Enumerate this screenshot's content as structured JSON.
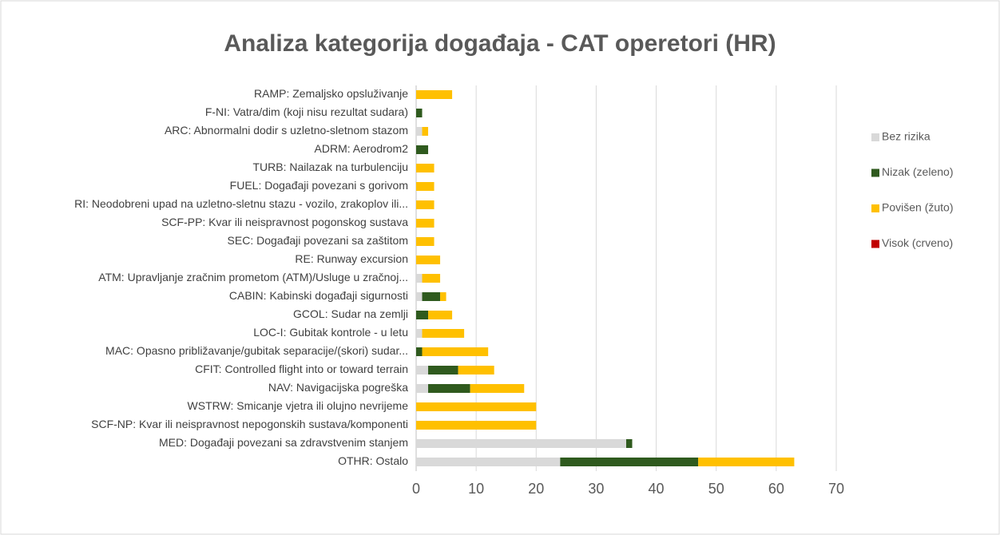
{
  "chart_data": {
    "type": "stacked_barh",
    "title": "Analiza kategorija događaja - CAT operetori (HR)",
    "categories": [
      "RAMP: Zemaljsko opsluživanje",
      "F-NI: Vatra/dim (koji nisu rezultat sudara)",
      "ARC: Abnormalni dodir s uzletno-sletnom stazom",
      "ADRM: Aerodrom2",
      "TURB: Nailazak na turbulenciju",
      "FUEL: Događaji povezani s gorivom",
      "RI: Neodobreni upad na uzletno-sletnu stazu - vozilo, zrakoplov ili...",
      "SCF-PP: Kvar ili neispravnost pogonskog sustava",
      "SEC: Događaji povezani sa zaštitom",
      "RE: Runway excursion",
      "ATM: Upravljanje zračnim prometom (ATM)/Usluge u zračnoj...",
      "CABIN: Kabinski događaji sigurnosti",
      "GCOL: Sudar na zemlji",
      "LOC-I: Gubitak kontrole - u letu",
      "MAC: Opasno približavanje/gubitak separacije/(skori) sudar...",
      "CFIT: Controlled flight into or toward terrain",
      "NAV: Navigacijska pogreška",
      "WSTRW: Smicanje vjetra ili olujno nevrijeme",
      "SCF-NP: Kvar ili neispravnost nepogonskih sustava/komponenti",
      "MED: Događaji povezani sa zdravstvenim stanjem",
      "OTHR: Ostalo"
    ],
    "series": [
      {
        "name": "Bez rizika",
        "color": "#d9d9d9",
        "values": [
          0,
          0,
          1,
          0,
          0,
          0,
          0,
          0,
          0,
          0,
          1,
          1,
          0,
          1,
          0,
          2,
          2,
          0,
          0,
          35,
          24
        ]
      },
      {
        "name": "Nizak (zeleno)",
        "color": "#2f5a1e",
        "values": [
          0,
          1,
          0,
          2,
          0,
          0,
          0,
          0,
          0,
          0,
          0,
          3,
          2,
          0,
          1,
          5,
          7,
          0,
          0,
          1,
          23
        ]
      },
      {
        "name": "Povišen (žuto)",
        "color": "#ffc000",
        "values": [
          6,
          0,
          1,
          0,
          3,
          3,
          3,
          3,
          3,
          4,
          3,
          1,
          4,
          7,
          11,
          6,
          9,
          20,
          20,
          0,
          16
        ]
      },
      {
        "name": "Visok (crveno)",
        "color": "#c00000",
        "values": [
          0,
          0,
          0,
          0,
          0,
          0,
          0,
          0,
          0,
          0,
          0,
          0,
          0,
          0,
          0,
          0,
          0,
          0,
          0,
          0,
          0
        ]
      }
    ],
    "xlim": [
      0,
      70
    ],
    "xticks": [
      0,
      10,
      20,
      30,
      40,
      50,
      60,
      70
    ],
    "grid": true,
    "legend": "right"
  }
}
